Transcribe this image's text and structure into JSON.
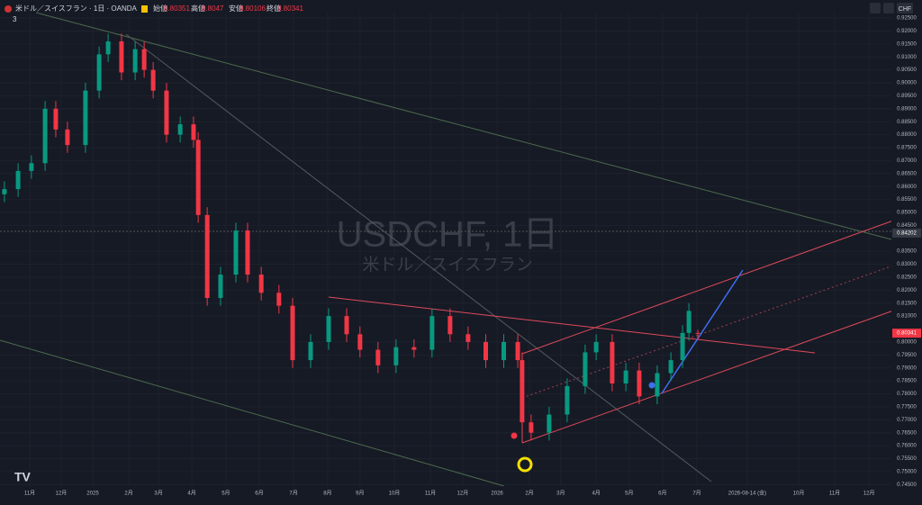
{
  "header": {
    "symbol": "米ドル／スイスフラン · 1日 · OANDA",
    "open_label": "始値",
    "high_label": "高値",
    "low_label": "安値",
    "close_label": "終値",
    "indicators": "3",
    "currency": "CHF"
  },
  "chart_data": {
    "type": "candlestick",
    "watermark": "USDCHF, 1日",
    "watermark_subtitle": "米ドル／スイスフラン",
    "up_color": "#089981",
    "down_color": "#f23645",
    "xlim": [
      0.108,
      26.83
    ],
    "ylim": [
      0.7444,
      0.9271
    ],
    "crosshair_price": 0.84202,
    "last_price": 0.80341,
    "xticks": [
      {
        "value": 1,
        "label": "11月"
      },
      {
        "value": 1.94,
        "label": "12月"
      },
      {
        "value": 2.89,
        "label": "2025"
      },
      {
        "value": 3.97,
        "label": "2月"
      },
      {
        "value": 4.86,
        "label": "3月"
      },
      {
        "value": 5.86,
        "label": "4月"
      },
      {
        "value": 6.88,
        "label": "5月"
      },
      {
        "value": 7.88,
        "label": "6月"
      },
      {
        "value": 8.91,
        "label": "7月"
      },
      {
        "value": 9.93,
        "label": "8月"
      },
      {
        "value": 10.9,
        "label": "9月"
      },
      {
        "value": 11.93,
        "label": "10月"
      },
      {
        "value": 13.01,
        "label": "11月"
      },
      {
        "value": 13.98,
        "label": "12月"
      },
      {
        "value": 15.01,
        "label": "2026"
      },
      {
        "value": 15.98,
        "label": "2月"
      },
      {
        "value": 16.92,
        "label": "3月"
      },
      {
        "value": 17.98,
        "label": "4月"
      },
      {
        "value": 18.97,
        "label": "5月"
      },
      {
        "value": 19.97,
        "label": "6月"
      },
      {
        "value": 21,
        "label": "7月"
      },
      {
        "value": 22.51,
        "label": "2026-08-14 (金)"
      },
      {
        "value": 24.05,
        "label": "10月"
      },
      {
        "value": 25.13,
        "label": "11月"
      },
      {
        "value": 26.16,
        "label": "12月"
      }
    ],
    "yticks": [
      {
        "value": 0.745,
        "label": "0.74500"
      },
      {
        "value": 0.75,
        "label": "0.75000"
      },
      {
        "value": 0.755,
        "label": "0.75500"
      },
      {
        "value": 0.76,
        "label": "0.76000"
      },
      {
        "value": 0.765,
        "label": "0.76500"
      },
      {
        "value": 0.77,
        "label": "0.77000"
      },
      {
        "value": 0.775,
        "label": "0.77500"
      },
      {
        "value": 0.78,
        "label": "0.78000"
      },
      {
        "value": 0.785,
        "label": "0.78500"
      },
      {
        "value": 0.79,
        "label": "0.79000"
      },
      {
        "value": 0.795,
        "label": "0.79500"
      },
      {
        "value": 0.8,
        "label": "0.80000"
      },
      {
        "value": 0.81,
        "label": "0.81000"
      },
      {
        "value": 0.815,
        "label": "0.81500"
      },
      {
        "value": 0.82,
        "label": "0.82000"
      },
      {
        "value": 0.825,
        "label": "0.82500"
      },
      {
        "value": 0.83,
        "label": "0.83000"
      },
      {
        "value": 0.835,
        "label": "0.83500"
      },
      {
        "value": 0.845,
        "label": "0.84500"
      },
      {
        "value": 0.85,
        "label": "0.85000"
      },
      {
        "value": 0.855,
        "label": "0.85500"
      },
      {
        "value": 0.86,
        "label": "0.86000"
      },
      {
        "value": 0.865,
        "label": "0.86500"
      },
      {
        "value": 0.87,
        "label": "0.87000"
      },
      {
        "value": 0.875,
        "label": "0.87500"
      },
      {
        "value": 0.88,
        "label": "0.88000"
      },
      {
        "value": 0.885,
        "label": "0.88500"
      },
      {
        "value": 0.89,
        "label": "0.89000"
      },
      {
        "value": 0.895,
        "label": "0.89500"
      },
      {
        "value": 0.9,
        "label": "0.90000"
      },
      {
        "value": 0.905,
        "label": "0.90500"
      },
      {
        "value": 0.91,
        "label": "0.91000"
      },
      {
        "value": 0.915,
        "label": "0.91500"
      },
      {
        "value": 0.92,
        "label": "0.92000"
      },
      {
        "value": 0.925,
        "label": "0.92500"
      }
    ],
    "x": [
      0.24,
      0.65,
      1.05,
      1.46,
      1.78,
      2.13,
      2.67,
      3.08,
      3.35,
      3.75,
      4.16,
      4.43,
      4.7,
      5.1,
      5.51,
      5.91,
      6.05,
      6.32,
      6.72,
      7.18,
      7.53,
      7.94,
      8.47,
      8.88,
      9.42,
      9.96,
      10.5,
      10.9,
      11.44,
      11.98,
      12.52,
      13.06,
      13.6,
      14.14,
      14.67,
      15.21,
      15.63,
      15.76,
      16.03,
      16.57,
      17.11,
      17.65,
      17.98,
      18.46,
      18.87,
      19.27,
      19.81,
      20.22,
      20.57,
      20.76,
      21.03
    ],
    "open": [
      0.857,
      0.859,
      0.866,
      0.869,
      0.89,
      0.882,
      0.876,
      0.897,
      0.911,
      0.916,
      0.904,
      0.913,
      0.905,
      0.897,
      0.88,
      0.884,
      0.878,
      0.849,
      0.817,
      0.826,
      0.843,
      0.826,
      0.819,
      0.814,
      0.793,
      0.8,
      0.81,
      0.803,
      0.797,
      0.791,
      0.798,
      0.797,
      0.81,
      0.803,
      0.8,
      0.793,
      0.8,
      0.793,
      0.769,
      0.765,
      0.772,
      0.783,
      0.796,
      0.8,
      0.784,
      0.789,
      0.779,
      0.788,
      0.793,
      0.8035,
      0.80351
    ],
    "high": [
      0.862,
      0.869,
      0.872,
      0.893,
      0.893,
      0.885,
      0.9,
      0.914,
      0.919,
      0.919,
      0.916,
      0.916,
      0.908,
      0.9,
      0.887,
      0.887,
      0.881,
      0.852,
      0.829,
      0.846,
      0.846,
      0.829,
      0.822,
      0.817,
      0.803,
      0.813,
      0.813,
      0.806,
      0.8,
      0.801,
      0.801,
      0.813,
      0.813,
      0.806,
      0.803,
      0.803,
      0.803,
      0.796,
      0.772,
      0.775,
      0.786,
      0.799,
      0.803,
      0.803,
      0.792,
      0.792,
      0.791,
      0.796,
      0.8065,
      0.815,
      0.8047
    ],
    "low": [
      0.854,
      0.856,
      0.863,
      0.866,
      0.879,
      0.873,
      0.873,
      0.894,
      0.908,
      0.901,
      0.901,
      0.902,
      0.894,
      0.877,
      0.877,
      0.875,
      0.846,
      0.814,
      0.814,
      0.823,
      0.823,
      0.816,
      0.811,
      0.79,
      0.79,
      0.797,
      0.8,
      0.794,
      0.788,
      0.788,
      0.794,
      0.794,
      0.8,
      0.797,
      0.79,
      0.79,
      0.79,
      0.766,
      0.762,
      0.762,
      0.769,
      0.78,
      0.793,
      0.781,
      0.781,
      0.776,
      0.776,
      0.785,
      0.79,
      0.8005,
      0.80106
    ],
    "close": [
      0.859,
      0.866,
      0.869,
      0.89,
      0.882,
      0.876,
      0.897,
      0.911,
      0.916,
      0.904,
      0.913,
      0.905,
      0.897,
      0.88,
      0.884,
      0.878,
      0.849,
      0.817,
      0.826,
      0.843,
      0.826,
      0.819,
      0.814,
      0.793,
      0.8,
      0.81,
      0.803,
      0.797,
      0.791,
      0.798,
      0.797,
      0.81,
      0.803,
      0.8,
      0.793,
      0.8,
      0.793,
      0.769,
      0.765,
      0.772,
      0.783,
      0.796,
      0.8,
      0.784,
      0.789,
      0.779,
      0.788,
      0.793,
      0.8035,
      0.812,
      0.80341
    ]
  }
}
